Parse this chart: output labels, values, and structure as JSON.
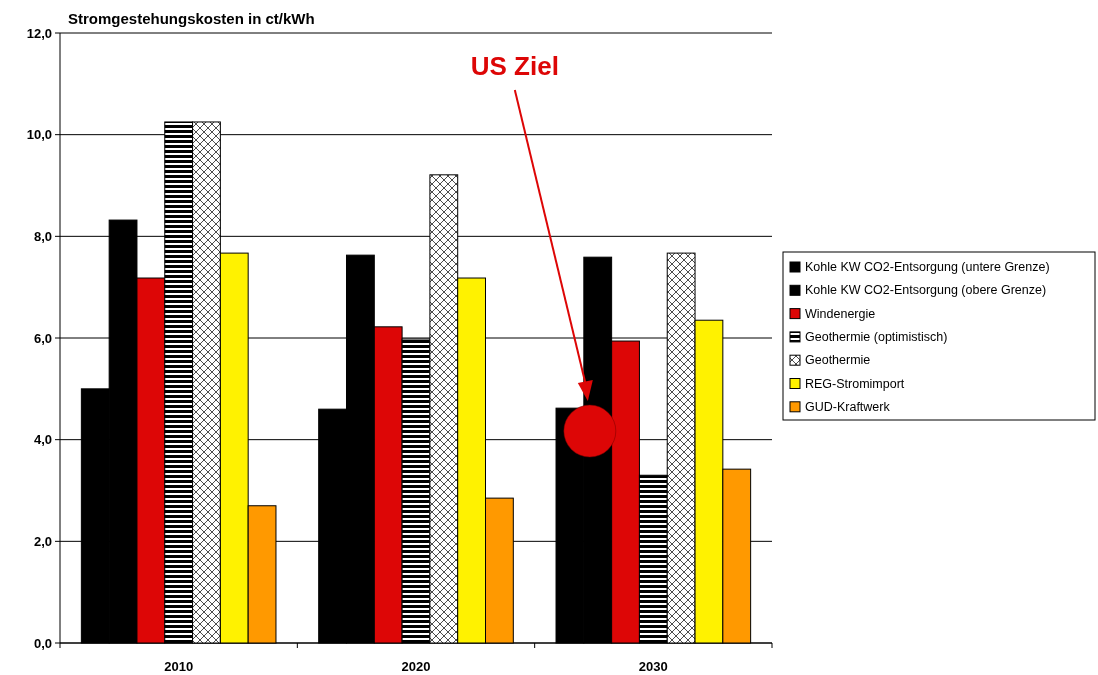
{
  "chart_data": {
    "type": "bar",
    "title": "Stromgestehungskosten in ct/kWh",
    "categories": [
      "2010",
      "2020",
      "2030"
    ],
    "series": [
      {
        "name": "Kohle KW CO2-Entsorgung (untere Grenze)",
        "color": "#000000",
        "values": [
          5.0,
          4.6,
          4.62
        ]
      },
      {
        "name": "Kohle KW CO2-Entsorgung (obere Grenze)",
        "color": "#000000",
        "values": [
          8.32,
          7.63,
          7.59
        ]
      },
      {
        "name": "Windenergie",
        "color": "#dd0606",
        "values": [
          7.18,
          6.22,
          5.94
        ]
      },
      {
        "name": "Geothermie (optimistisch)",
        "color": "#000000",
        "values": [
          10.25,
          5.98,
          3.3
        ]
      },
      {
        "name": "Geothermie",
        "color": "#000000",
        "values": [
          10.25,
          9.21,
          7.67
        ]
      },
      {
        "name": "REG-Stromimport",
        "color": "#fff200",
        "values": [
          7.67,
          7.18,
          6.35
        ]
      },
      {
        "name": "GUD-Kraftwerk",
        "color": "#ff9900",
        "values": [
          2.7,
          2.85,
          3.42
        ]
      },
      {
        "type": "scatter",
        "color": "#dd0606",
        "values": [
          null,
          null,
          4.17
        ]
      }
    ],
    "annotations": [
      "US Ziel"
    ],
    "ylim": [
      0,
      12
    ],
    "yticks": [
      {
        "value": 0,
        "label": "0,0"
      },
      {
        "value": 2,
        "label": "2,0"
      },
      {
        "value": 4,
        "label": "4,0"
      },
      {
        "value": 6,
        "label": "6,0"
      },
      {
        "value": 8,
        "label": "8,0"
      },
      {
        "value": 10,
        "label": "10,0"
      },
      {
        "value": 12,
        "label": "12,0"
      }
    ],
    "grid": "y",
    "legend": "right"
  }
}
